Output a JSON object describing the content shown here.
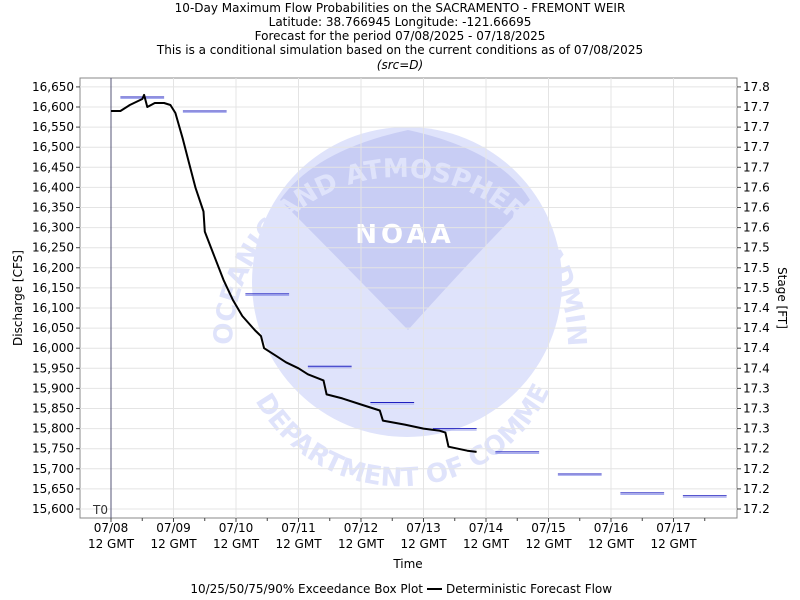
{
  "header": {
    "title": "10-Day Maximum Flow Probabilities on the SACRAMENTO - FREMONT WEIR",
    "location": "Latitude: 38.766945 Longitude: -121.66695",
    "period": "Forecast for the period 07/08/2025 - 07/18/2025",
    "note": "This is a conditional simulation based on the current conditions as of 07/08/2025",
    "source": "(src=D)"
  },
  "watermark": {
    "logo_text": "NOAA",
    "ring_top": "NATIONAL OCEANIC AND ATMOSPHERIC ADMINISTRATION",
    "ring_bottom": "U.S. DEPARTMENT OF COMMERCE"
  },
  "colors": {
    "flow_line": "#000000",
    "box_plot": "#1f1fbf",
    "watermark": "#dfe3fb",
    "watermark_dark": "#c8cdf4"
  },
  "chart_data": {
    "type": "line",
    "t0_label": "T0",
    "xlabel": "Time",
    "ylabel_left": "Discharge [CFS]",
    "ylabel_right": "Stage [FT]",
    "x_ticks": [
      [
        "07/08",
        "12 GMT"
      ],
      [
        "07/09",
        "12 GMT"
      ],
      [
        "07/10",
        "12 GMT"
      ],
      [
        "07/11",
        "12 GMT"
      ],
      [
        "07/12",
        "12 GMT"
      ],
      [
        "07/13",
        "12 GMT"
      ],
      [
        "07/14",
        "12 GMT"
      ],
      [
        "07/15",
        "12 GMT"
      ],
      [
        "07/16",
        "12 GMT"
      ],
      [
        "07/17",
        "12 GMT"
      ]
    ],
    "x_range_days": [
      0,
      10
    ],
    "ylim": [
      15600,
      16650
    ],
    "y_ticks": [
      "15,600",
      "15,650",
      "15,700",
      "15,750",
      "15,800",
      "15,850",
      "15,900",
      "15,950",
      "16,000",
      "16,050",
      "16,100",
      "16,150",
      "16,200",
      "16,250",
      "16,300",
      "16,350",
      "16,400",
      "16,450",
      "16,500",
      "16,550",
      "16,600",
      "16,650"
    ],
    "stage_ticks": [
      "17.2",
      "17.2",
      "17.2",
      "17.2",
      "17.3",
      "17.3",
      "17.3",
      "17.4",
      "17.4",
      "17.4",
      "17.4",
      "17.5",
      "17.5",
      "17.5",
      "17.6",
      "17.6",
      "17.6",
      "17.7",
      "17.7",
      "17.7",
      "17.7",
      "17.8"
    ],
    "legend": {
      "box_plot": "10/25/50/75/90% Exceedance Box Plot",
      "deterministic": "Deterministic Forecast Flow"
    },
    "deterministic_flow": [
      [
        0.0,
        16590
      ],
      [
        0.15,
        16590
      ],
      [
        0.3,
        16605
      ],
      [
        0.5,
        16620
      ],
      [
        0.53,
        16630
      ],
      [
        0.58,
        16600
      ],
      [
        0.7,
        16610
      ],
      [
        0.85,
        16610
      ],
      [
        0.95,
        16605
      ],
      [
        1.03,
        16585
      ],
      [
        1.15,
        16520
      ],
      [
        1.25,
        16460
      ],
      [
        1.35,
        16400
      ],
      [
        1.48,
        16340
      ],
      [
        1.5,
        16290
      ],
      [
        1.65,
        16230
      ],
      [
        1.8,
        16170
      ],
      [
        1.95,
        16120
      ],
      [
        2.1,
        16080
      ],
      [
        2.3,
        16045
      ],
      [
        2.4,
        16030
      ],
      [
        2.45,
        16000
      ],
      [
        2.65,
        15980
      ],
      [
        2.8,
        15965
      ],
      [
        3.0,
        15950
      ],
      [
        3.15,
        15935
      ],
      [
        3.4,
        15920
      ],
      [
        3.45,
        15885
      ],
      [
        3.7,
        15875
      ],
      [
        4.0,
        15860
      ],
      [
        4.3,
        15845
      ],
      [
        4.35,
        15820
      ],
      [
        4.7,
        15810
      ],
      [
        5.0,
        15800
      ],
      [
        5.25,
        15795
      ],
      [
        5.35,
        15790
      ],
      [
        5.4,
        15755
      ],
      [
        5.7,
        15745
      ],
      [
        5.85,
        15742
      ]
    ],
    "exceedance_boxes": [
      {
        "day_start": 0.15,
        "day_end": 0.85,
        "value": 16625
      },
      {
        "day_start": 1.15,
        "day_end": 1.85,
        "value": 16590
      },
      {
        "day_start": 2.15,
        "day_end": 2.85,
        "value": 16135
      },
      {
        "day_start": 3.15,
        "day_end": 3.85,
        "value": 15955
      },
      {
        "day_start": 4.15,
        "day_end": 4.85,
        "value": 15865
      },
      {
        "day_start": 5.15,
        "day_end": 5.85,
        "value": 15800
      },
      {
        "day_start": 6.15,
        "day_end": 6.85,
        "value": 15742
      },
      {
        "day_start": 7.15,
        "day_end": 7.85,
        "value": 15687
      },
      {
        "day_start": 8.15,
        "day_end": 8.85,
        "value": 15640
      },
      {
        "day_start": 9.15,
        "day_end": 9.85,
        "value": 15633
      }
    ]
  }
}
